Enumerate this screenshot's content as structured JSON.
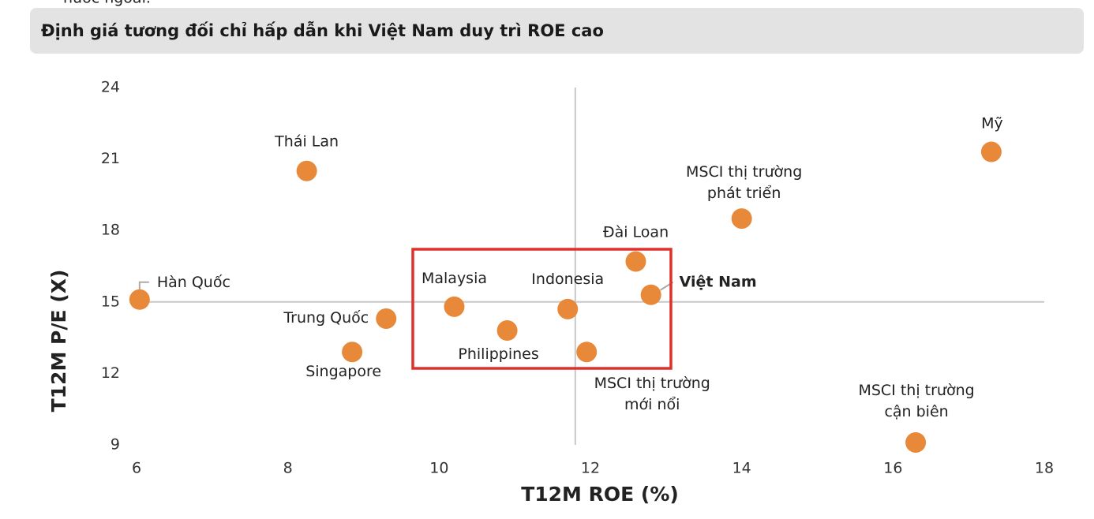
{
  "header_above": "nước ngoài.",
  "chart_data": {
    "type": "scatter",
    "title": "Định giá tương đối chỉ hấp dẫn khi Việt Nam duy trì ROE cao",
    "x_label": "T12M ROE (%)",
    "y_label": "T12M P/E (X)",
    "xlim": [
      6,
      18
    ],
    "ylim": [
      9,
      24
    ],
    "xticks": [
      6,
      8,
      10,
      12,
      14,
      16,
      18
    ],
    "yticks": [
      9,
      12,
      15,
      18,
      21,
      24
    ],
    "color": "#e8893a",
    "reference_lines": {
      "x": 11.8,
      "y": 15
    },
    "highlight_index": 9,
    "labels": [
      [
        "Hàn Quốc"
      ],
      [
        "Thái Lan"
      ],
      [
        "Trung Quốc"
      ],
      [
        "Singapore"
      ],
      [
        "Malaysia"
      ],
      [
        "Philippines"
      ],
      [
        "Indonesia"
      ],
      [
        "MSCI thị trường",
        "mới nổi"
      ],
      [
        "Đài Loan"
      ],
      [
        "Việt Nam"
      ],
      [
        "MSCI thị trường",
        "phát triển"
      ],
      [
        "Mỹ"
      ],
      [
        "MSCI thị trường",
        "cận biên"
      ]
    ],
    "x": [
      6.04,
      8.25,
      9.3,
      8.85,
      10.2,
      10.9,
      11.7,
      11.95,
      12.6,
      12.8,
      14.0,
      17.3,
      16.3
    ],
    "values": [
      15.1,
      20.5,
      14.3,
      12.9,
      14.8,
      13.8,
      14.7,
      12.9,
      16.7,
      15.3,
      18.5,
      21.3,
      9.1
    ]
  }
}
